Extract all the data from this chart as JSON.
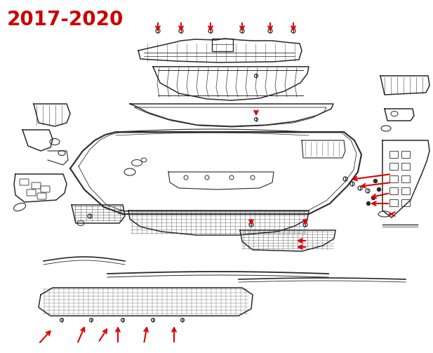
{
  "title": "2017-2020",
  "title_color": "#cc0000",
  "title_fontsize": 20,
  "background_color": "#ffffff",
  "line_color": "#2a2a2a",
  "arrow_color": "#dd0000",
  "figsize": [
    6.17,
    5.03
  ],
  "dpi": 100
}
